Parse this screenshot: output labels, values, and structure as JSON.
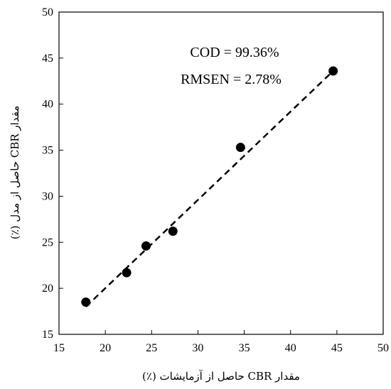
{
  "chart_data": {
    "type": "scatter",
    "title": "",
    "xlabel": "مقدار CBR حاصل از آزمایشات (٪)",
    "ylabel": "مقدار CBR حاصل از مدل (٪)",
    "xlim": [
      15,
      50
    ],
    "ylim": [
      15,
      50
    ],
    "xticks": [
      15,
      20,
      25,
      30,
      35,
      40,
      45,
      50
    ],
    "yticks": [
      15,
      20,
      25,
      30,
      35,
      40,
      45,
      50
    ],
    "grid": false,
    "legend": "none",
    "series": [
      {
        "points": [
          {
            "x": 17.9,
            "y": 18.5
          },
          {
            "x": 22.3,
            "y": 21.7
          },
          {
            "x": 24.4,
            "y": 24.6
          },
          {
            "x": 27.3,
            "y": 26.2
          },
          {
            "x": 34.6,
            "y": 35.3
          },
          {
            "x": 44.6,
            "y": 43.6
          }
        ],
        "color": "#000000"
      }
    ],
    "fit_line": {
      "x": [
        17.9,
        44.6
      ],
      "y": [
        18.0,
        43.6
      ],
      "style": "dashed",
      "color": "#000000"
    },
    "annotations": [
      "COD = 99.36%",
      "RMSEN = 2.78%"
    ]
  }
}
